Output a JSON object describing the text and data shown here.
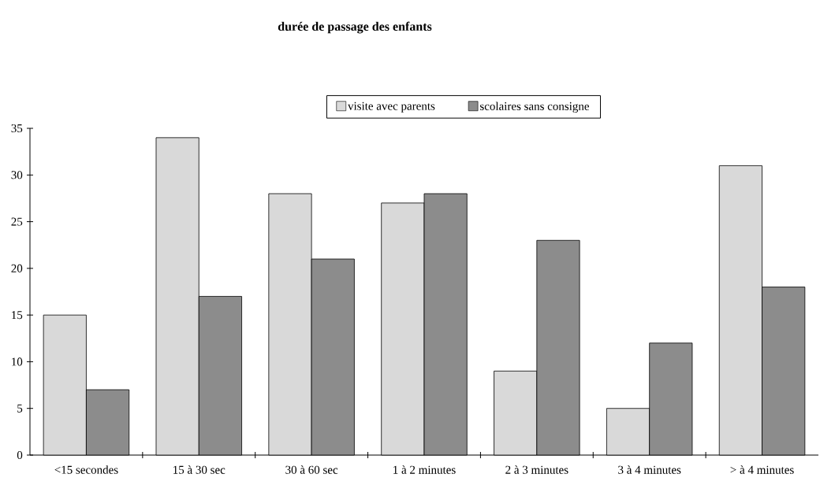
{
  "chart_data": {
    "type": "bar",
    "title": "durée de passage des enfants",
    "categories": [
      "<15 secondes",
      "15 à 30 sec",
      "30 à 60 sec",
      "1 à 2 minutes",
      "2 à 3 minutes",
      "3 à 4 minutes",
      "> à 4 minutes"
    ],
    "series": [
      {
        "name": "visite avec parents",
        "color": "#d9d9d9",
        "values": [
          15,
          34,
          28,
          27,
          9,
          5,
          31
        ]
      },
      {
        "name": "scolaires sans consigne",
        "color": "#8c8c8c",
        "values": [
          7,
          17,
          21,
          28,
          23,
          12,
          18
        ]
      }
    ],
    "ylim": [
      0,
      35
    ],
    "yticks": [
      0,
      5,
      10,
      15,
      20,
      25,
      30,
      35
    ],
    "grid": false,
    "legend": "top"
  }
}
